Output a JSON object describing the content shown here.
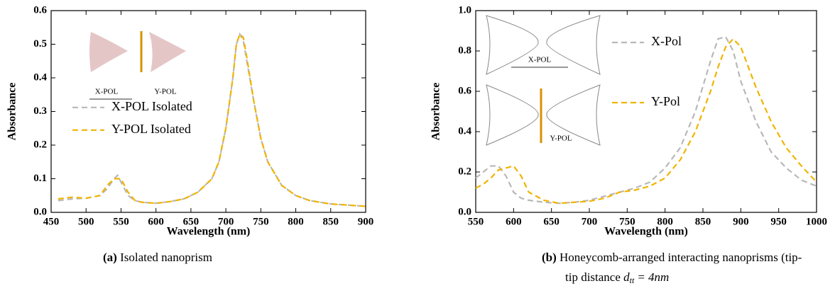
{
  "chart_data": [
    {
      "type": "line",
      "caption_tag": "(a)",
      "caption": "Isolated nanoprism",
      "x_label": "Wavelength (nm)",
      "y_label": "Absorbance",
      "x": [
        460,
        480,
        500,
        520,
        530,
        540,
        545,
        550,
        560,
        570,
        580,
        600,
        620,
        640,
        660,
        680,
        690,
        700,
        710,
        715,
        720,
        725,
        730,
        740,
        750,
        760,
        780,
        800,
        820,
        850,
        900
      ],
      "series": [
        {
          "name": "X-POL Isolated",
          "color": "#b8b8b8",
          "values": [
            0.035,
            0.04,
            0.042,
            0.05,
            0.07,
            0.1,
            0.11,
            0.09,
            0.05,
            0.035,
            0.03,
            0.027,
            0.032,
            0.04,
            0.06,
            0.1,
            0.15,
            0.25,
            0.4,
            0.5,
            0.53,
            0.51,
            0.45,
            0.33,
            0.22,
            0.15,
            0.08,
            0.05,
            0.035,
            0.025,
            0.018
          ]
        },
        {
          "name": "Y-POL Isolated",
          "color": "#f0b400",
          "values": [
            0.04,
            0.045,
            0.042,
            0.05,
            0.08,
            0.1,
            0.1,
            0.1,
            0.06,
            0.035,
            0.03,
            0.027,
            0.032,
            0.04,
            0.06,
            0.1,
            0.15,
            0.25,
            0.4,
            0.5,
            0.53,
            0.52,
            0.46,
            0.33,
            0.22,
            0.15,
            0.08,
            0.05,
            0.035,
            0.025,
            0.018
          ]
        }
      ],
      "xlim": [
        450,
        900
      ],
      "xticks": [
        450,
        500,
        550,
        600,
        650,
        700,
        750,
        800,
        850,
        900
      ],
      "ylim": [
        0,
        0.6
      ],
      "yticks": [
        {
          "value": 0,
          "label": "0.0"
        },
        0.1,
        0.2,
        0.3,
        0.4,
        0.5,
        0.6
      ],
      "legend": "center left",
      "inset_labels": [
        "X-POL",
        "Y-POL"
      ]
    },
    {
      "type": "line",
      "caption_tag": "(b)",
      "caption": "Honeycomb-arranged interacting nanoprisms (tip-",
      "caption_line2": "tip distance",
      "caption_math": [
        "d",
        "tt",
        "= 4nm"
      ],
      "x_label": "Wavelength (nm)",
      "y_label": "Absorbance",
      "x": [
        550,
        560,
        570,
        580,
        590,
        600,
        610,
        620,
        640,
        660,
        680,
        700,
        720,
        740,
        760,
        780,
        800,
        820,
        840,
        860,
        870,
        880,
        890,
        900,
        920,
        940,
        960,
        980,
        1000
      ],
      "series": [
        {
          "name": "X-Pol",
          "color": "#b8b8b8",
          "values": [
            0.17,
            0.2,
            0.23,
            0.23,
            0.18,
            0.1,
            0.07,
            0.06,
            0.05,
            0.045,
            0.05,
            0.06,
            0.08,
            0.1,
            0.12,
            0.15,
            0.22,
            0.32,
            0.5,
            0.75,
            0.86,
            0.87,
            0.8,
            0.65,
            0.45,
            0.3,
            0.22,
            0.16,
            0.13
          ]
        },
        {
          "name": "Y-Pol",
          "color": "#f0b400",
          "values": [
            0.12,
            0.14,
            0.17,
            0.21,
            0.22,
            0.23,
            0.18,
            0.1,
            0.06,
            0.045,
            0.05,
            0.055,
            0.07,
            0.1,
            0.11,
            0.13,
            0.17,
            0.26,
            0.4,
            0.6,
            0.72,
            0.82,
            0.86,
            0.82,
            0.62,
            0.45,
            0.32,
            0.23,
            0.15
          ]
        }
      ],
      "xlim": [
        550,
        1000
      ],
      "xticks": [
        550,
        600,
        650,
        700,
        750,
        800,
        850,
        900,
        950,
        1000
      ],
      "ylim": [
        0,
        1
      ],
      "yticks": [
        {
          "value": 0,
          "label": "0.0"
        },
        0.2,
        0.4,
        0.6,
        0.8,
        {
          "value": 1,
          "label": "1.0"
        }
      ],
      "legend": "upper center",
      "inset_labels": [
        "X-POL",
        "Y-POL"
      ]
    }
  ]
}
